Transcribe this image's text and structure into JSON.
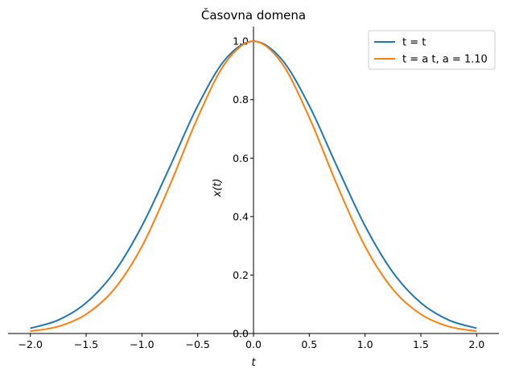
{
  "chart_data": {
    "type": "line",
    "title": "Časovna domena",
    "xlabel": "t",
    "ylabel": "x(t)",
    "xlim": [
      -2.2,
      2.2
    ],
    "ylim": [
      0.0,
      1.05
    ],
    "xticks": [
      -2.0,
      -1.5,
      -1.0,
      -0.5,
      0.0,
      0.5,
      1.0,
      1.5,
      2.0
    ],
    "xtick_labels": [
      "−2.0",
      "−1.5",
      "−1.0",
      "−0.5",
      "0.0",
      "0.5",
      "1.0",
      "1.5",
      "2.0"
    ],
    "yticks": [
      0.0,
      0.2,
      0.4,
      0.6,
      0.8,
      1.0
    ],
    "ytick_labels": [
      "0.0",
      "0.2",
      "0.4",
      "0.6",
      "0.8",
      "1.0"
    ],
    "grid": false,
    "legend_position": "top-right",
    "series": [
      {
        "name": "t = t",
        "color": "#1f77b4",
        "x": [
          -2.0,
          -1.75,
          -1.5,
          -1.25,
          -1.0,
          -0.75,
          -0.5,
          -0.25,
          0.0,
          0.25,
          0.5,
          0.75,
          1.0,
          1.25,
          1.5,
          1.75,
          2.0
        ],
        "values": [
          0.018,
          0.046,
          0.105,
          0.209,
          0.368,
          0.57,
          0.779,
          0.939,
          1.0,
          0.939,
          0.779,
          0.57,
          0.368,
          0.209,
          0.105,
          0.046,
          0.018
        ]
      },
      {
        "name": "t = a t, a = 1.10",
        "color": "#ff7f0e",
        "x": [
          -2.0,
          -1.75,
          -1.5,
          -1.25,
          -1.0,
          -0.75,
          -0.5,
          -0.25,
          0.0,
          0.25,
          0.5,
          0.75,
          1.0,
          1.25,
          1.5,
          1.75,
          2.0
        ],
        "values": [
          0.008,
          0.024,
          0.066,
          0.151,
          0.298,
          0.507,
          0.739,
          0.927,
          1.0,
          0.927,
          0.739,
          0.507,
          0.298,
          0.151,
          0.066,
          0.024,
          0.008
        ]
      }
    ]
  }
}
